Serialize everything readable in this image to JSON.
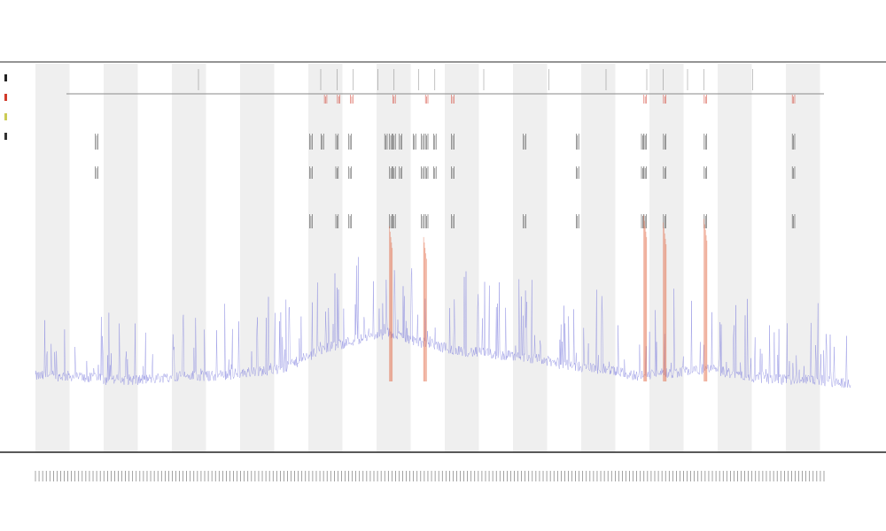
{
  "chart_data": {
    "type": "line",
    "title": "",
    "subtitle_lines": [
      "",
      ""
    ],
    "xlabel": "",
    "ylabel": "",
    "legend_placement": "top-left",
    "grid": false,
    "shaded_bands": true,
    "band_count": 12,
    "x_tick_count": 220,
    "ylim": [
      0,
      1
    ],
    "series": [
      {
        "color": "#7b7bdc",
        "style": "dense-noisy-line",
        "baseline": [
          0.12,
          0.12,
          0.11,
          0.11,
          0.12,
          0.12,
          0.13,
          0.14,
          0.19,
          0.22,
          0.24,
          0.21,
          0.19,
          0.18,
          0.17,
          0.15,
          0.14,
          0.12,
          0.13,
          0.14,
          0.12,
          0.11,
          0.11,
          0.1
        ]
      },
      {
        "color": "#e0603a",
        "style": "vertical-spikes",
        "spike_positions": [
          0.436,
          0.478,
          0.748,
          0.772,
          0.822
        ],
        "spike_heights": [
          0.55,
          0.52,
          0.58,
          0.56,
          0.57
        ]
      }
    ],
    "marker_rows": [
      {
        "color": "#d13a2a",
        "positions": [
          0.356,
          0.372,
          0.388,
          0.44,
          0.48,
          0.512,
          0.748,
          0.772,
          0.822,
          0.93
        ]
      },
      {
        "color": "#333333",
        "positions": [
          0.075,
          0.338,
          0.352,
          0.37,
          0.386,
          0.43,
          0.436,
          0.44,
          0.448,
          0.465,
          0.475,
          0.48,
          0.49,
          0.512,
          0.6,
          0.665,
          0.745,
          0.748,
          0.772,
          0.822,
          0.93
        ]
      },
      {
        "color": "#333333",
        "positions": [
          0.075,
          0.338,
          0.37,
          0.386,
          0.436,
          0.44,
          0.448,
          0.475,
          0.48,
          0.49,
          0.512,
          0.665,
          0.745,
          0.748,
          0.772,
          0.822,
          0.93
        ]
      },
      {
        "color": "#333333",
        "positions": [
          0.338,
          0.37,
          0.386,
          0.436,
          0.44,
          0.475,
          0.48,
          0.512,
          0.6,
          0.665,
          0.745,
          0.748,
          0.772,
          0.822,
          0.93
        ]
      }
    ]
  }
}
